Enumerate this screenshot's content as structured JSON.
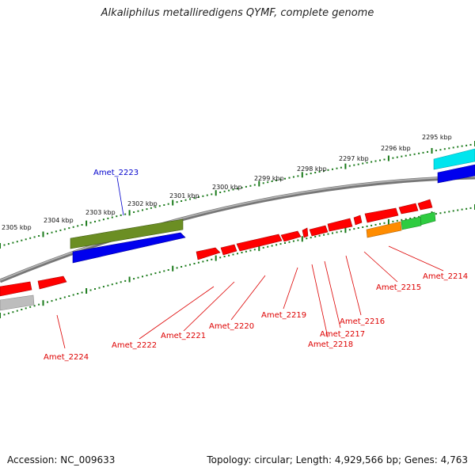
{
  "title": "Alkaliphilus metalliredigens QYMF, complete genome",
  "footer": {
    "accession": "Accession: NC_009633",
    "summary": "Topology: circular; Length: 4,929,566 bp; Genes: 4,763"
  },
  "colors": {
    "backbone": "#8a8a8a",
    "ticks": "#1a7a1a",
    "gene_red": "#ff0000",
    "label_red": "#dd0000",
    "label_blue": "#0000cc",
    "blue": "#0000ee",
    "olive": "#6b8e23",
    "cyan": "#00e5ee",
    "orange": "#ff8c00",
    "green": "#2ecc40",
    "gray": "#bdbdbd"
  },
  "kbp_labels": [
    "2295 kbp",
    "2296 kbp",
    "2297 kbp",
    "2298 kbp",
    "2299 kbp",
    "2300 kbp",
    "2301 kbp",
    "2302 kbp",
    "2303 kbp",
    "2304 kbp",
    "2305 kbp"
  ],
  "gene_labels": {
    "g2223": "Amet_2223",
    "g2224": "Amet_2224",
    "g2222": "Amet_2222",
    "g2221": "Amet_2221",
    "g2220": "Amet_2220",
    "g2219": "Amet_2219",
    "g2218": "Amet_2218",
    "g2217": "Amet_2217",
    "g2216": "Amet_2216",
    "g2215": "Amet_2215",
    "g2214": "Amet_2214"
  }
}
